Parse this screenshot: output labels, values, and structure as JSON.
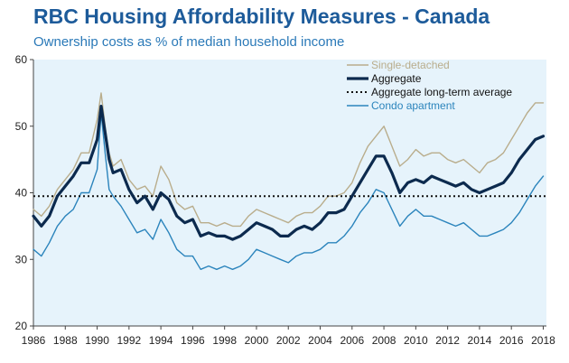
{
  "header": {
    "title": "RBC Housing Affordability Measures - Canada",
    "subtitle": "Ownership costs as % of median household income"
  },
  "chart_data": {
    "type": "line",
    "title": "RBC Housing Affordability Measures - Canada",
    "subtitle": "Ownership costs as % of median household income",
    "xlabel": "",
    "ylabel": "",
    "xlim": [
      1986,
      2018.2
    ],
    "ylim": [
      20,
      60
    ],
    "xticks": [
      1986,
      1988,
      1990,
      1992,
      1994,
      1996,
      1998,
      2000,
      2002,
      2004,
      2006,
      2008,
      2010,
      2012,
      2014,
      2016,
      2018
    ],
    "yticks": [
      20,
      30,
      40,
      50,
      60
    ],
    "grid": false,
    "legend_position": "top-right",
    "series": [
      {
        "name": "Single-detached",
        "color": "#b9ad8c",
        "style": "solid",
        "x": [
          1986.0,
          1986.5,
          1987.0,
          1987.5,
          1988.0,
          1988.5,
          1989.0,
          1989.5,
          1990.0,
          1990.25,
          1990.5,
          1990.75,
          1991.0,
          1991.5,
          1992.0,
          1992.5,
          1993.0,
          1993.5,
          1994.0,
          1994.5,
          1995.0,
          1995.5,
          1996.0,
          1996.5,
          1997.0,
          1997.5,
          1998.0,
          1998.5,
          1999.0,
          1999.5,
          2000.0,
          2000.5,
          2001.0,
          2001.5,
          2002.0,
          2002.5,
          2003.0,
          2003.5,
          2004.0,
          2004.5,
          2005.0,
          2005.5,
          2006.0,
          2006.5,
          2007.0,
          2007.5,
          2008.0,
          2008.5,
          2009.0,
          2009.5,
          2010.0,
          2010.5,
          2011.0,
          2011.5,
          2012.0,
          2012.5,
          2013.0,
          2013.5,
          2014.0,
          2014.5,
          2015.0,
          2015.5,
          2016.0,
          2016.5,
          2017.0,
          2017.5,
          2018.0
        ],
        "values": [
          37.5,
          36.5,
          38.0,
          40.5,
          42.0,
          43.5,
          46.0,
          46.0,
          51.0,
          55.0,
          50.0,
          46.0,
          44.0,
          45.0,
          42.0,
          40.5,
          41.0,
          39.5,
          44.0,
          42.0,
          38.5,
          37.5,
          38.0,
          35.5,
          35.5,
          35.0,
          35.5,
          35.0,
          35.0,
          36.5,
          37.5,
          37.0,
          36.5,
          36.0,
          35.5,
          36.5,
          37.0,
          37.0,
          38.0,
          39.5,
          39.5,
          40.0,
          41.5,
          44.5,
          47.0,
          48.5,
          50.0,
          47.0,
          44.0,
          45.0,
          46.5,
          45.5,
          46.0,
          46.0,
          45.0,
          44.5,
          45.0,
          44.0,
          43.0,
          44.5,
          45.0,
          46.0,
          48.0,
          50.0,
          52.0,
          53.5,
          53.5
        ]
      },
      {
        "name": "Aggregate",
        "color": "#0c2a4e",
        "style": "solid-thick",
        "x": [
          1986.0,
          1986.5,
          1987.0,
          1987.5,
          1988.0,
          1988.5,
          1989.0,
          1989.5,
          1990.0,
          1990.25,
          1990.5,
          1990.75,
          1991.0,
          1991.5,
          1992.0,
          1992.5,
          1993.0,
          1993.5,
          1994.0,
          1994.5,
          1995.0,
          1995.5,
          1996.0,
          1996.5,
          1997.0,
          1997.5,
          1998.0,
          1998.5,
          1999.0,
          1999.5,
          2000.0,
          2000.5,
          2001.0,
          2001.5,
          2002.0,
          2002.5,
          2003.0,
          2003.5,
          2004.0,
          2004.5,
          2005.0,
          2005.5,
          2006.0,
          2006.5,
          2007.0,
          2007.5,
          2008.0,
          2008.5,
          2009.0,
          2009.5,
          2010.0,
          2010.5,
          2011.0,
          2011.5,
          2012.0,
          2012.5,
          2013.0,
          2013.5,
          2014.0,
          2014.5,
          2015.0,
          2015.5,
          2016.0,
          2016.5,
          2017.0,
          2017.5,
          2018.0
        ],
        "values": [
          36.5,
          35.0,
          36.5,
          39.5,
          41.0,
          42.5,
          44.5,
          44.5,
          48.0,
          53.0,
          49.0,
          45.0,
          43.0,
          43.5,
          40.5,
          38.5,
          39.5,
          37.5,
          40.0,
          39.0,
          36.5,
          35.5,
          36.0,
          33.5,
          34.0,
          33.5,
          33.5,
          33.0,
          33.5,
          34.5,
          35.5,
          35.0,
          34.5,
          33.5,
          33.5,
          34.5,
          35.0,
          34.5,
          35.5,
          37.0,
          37.0,
          37.5,
          39.5,
          41.5,
          43.5,
          45.5,
          45.5,
          43.0,
          40.0,
          41.5,
          42.0,
          41.5,
          42.5,
          42.0,
          41.5,
          41.0,
          41.5,
          40.5,
          40.0,
          40.5,
          41.0,
          41.5,
          43.0,
          45.0,
          46.5,
          48.0,
          48.5
        ]
      },
      {
        "name": "Aggregate long-term average",
        "color": "#111111",
        "style": "dotted",
        "x": [
          1986.0,
          2018.2
        ],
        "values": [
          39.5,
          39.5
        ]
      },
      {
        "name": "Condo apartment",
        "color": "#2b84bc",
        "style": "solid",
        "x": [
          1986.0,
          1986.5,
          1987.0,
          1987.5,
          1988.0,
          1988.5,
          1989.0,
          1989.5,
          1990.0,
          1990.25,
          1990.5,
          1990.75,
          1991.0,
          1991.5,
          1992.0,
          1992.5,
          1993.0,
          1993.5,
          1994.0,
          1994.5,
          1995.0,
          1995.5,
          1996.0,
          1996.5,
          1997.0,
          1997.5,
          1998.0,
          1998.5,
          1999.0,
          1999.5,
          2000.0,
          2000.5,
          2001.0,
          2001.5,
          2002.0,
          2002.5,
          2003.0,
          2003.5,
          2004.0,
          2004.5,
          2005.0,
          2005.5,
          2006.0,
          2006.5,
          2007.0,
          2007.5,
          2008.0,
          2008.5,
          2009.0,
          2009.5,
          2010.0,
          2010.5,
          2011.0,
          2011.5,
          2012.0,
          2012.5,
          2013.0,
          2013.5,
          2014.0,
          2014.5,
          2015.0,
          2015.5,
          2016.0,
          2016.5,
          2017.0,
          2017.5,
          2018.0
        ],
        "values": [
          31.5,
          30.5,
          32.5,
          35.0,
          36.5,
          37.5,
          40.0,
          40.0,
          43.5,
          52.0,
          46.0,
          40.5,
          39.5,
          38.0,
          36.0,
          34.0,
          34.5,
          33.0,
          36.0,
          34.0,
          31.5,
          30.5,
          30.5,
          28.5,
          29.0,
          28.5,
          29.0,
          28.5,
          29.0,
          30.0,
          31.5,
          31.0,
          30.5,
          30.0,
          29.5,
          30.5,
          31.0,
          31.0,
          31.5,
          32.5,
          32.5,
          33.5,
          35.0,
          37.0,
          38.5,
          40.5,
          40.0,
          37.5,
          35.0,
          36.5,
          37.5,
          36.5,
          36.5,
          36.0,
          35.5,
          35.0,
          35.5,
          34.5,
          33.5,
          33.5,
          34.0,
          34.5,
          35.5,
          37.0,
          39.0,
          41.0,
          42.5
        ]
      }
    ]
  }
}
